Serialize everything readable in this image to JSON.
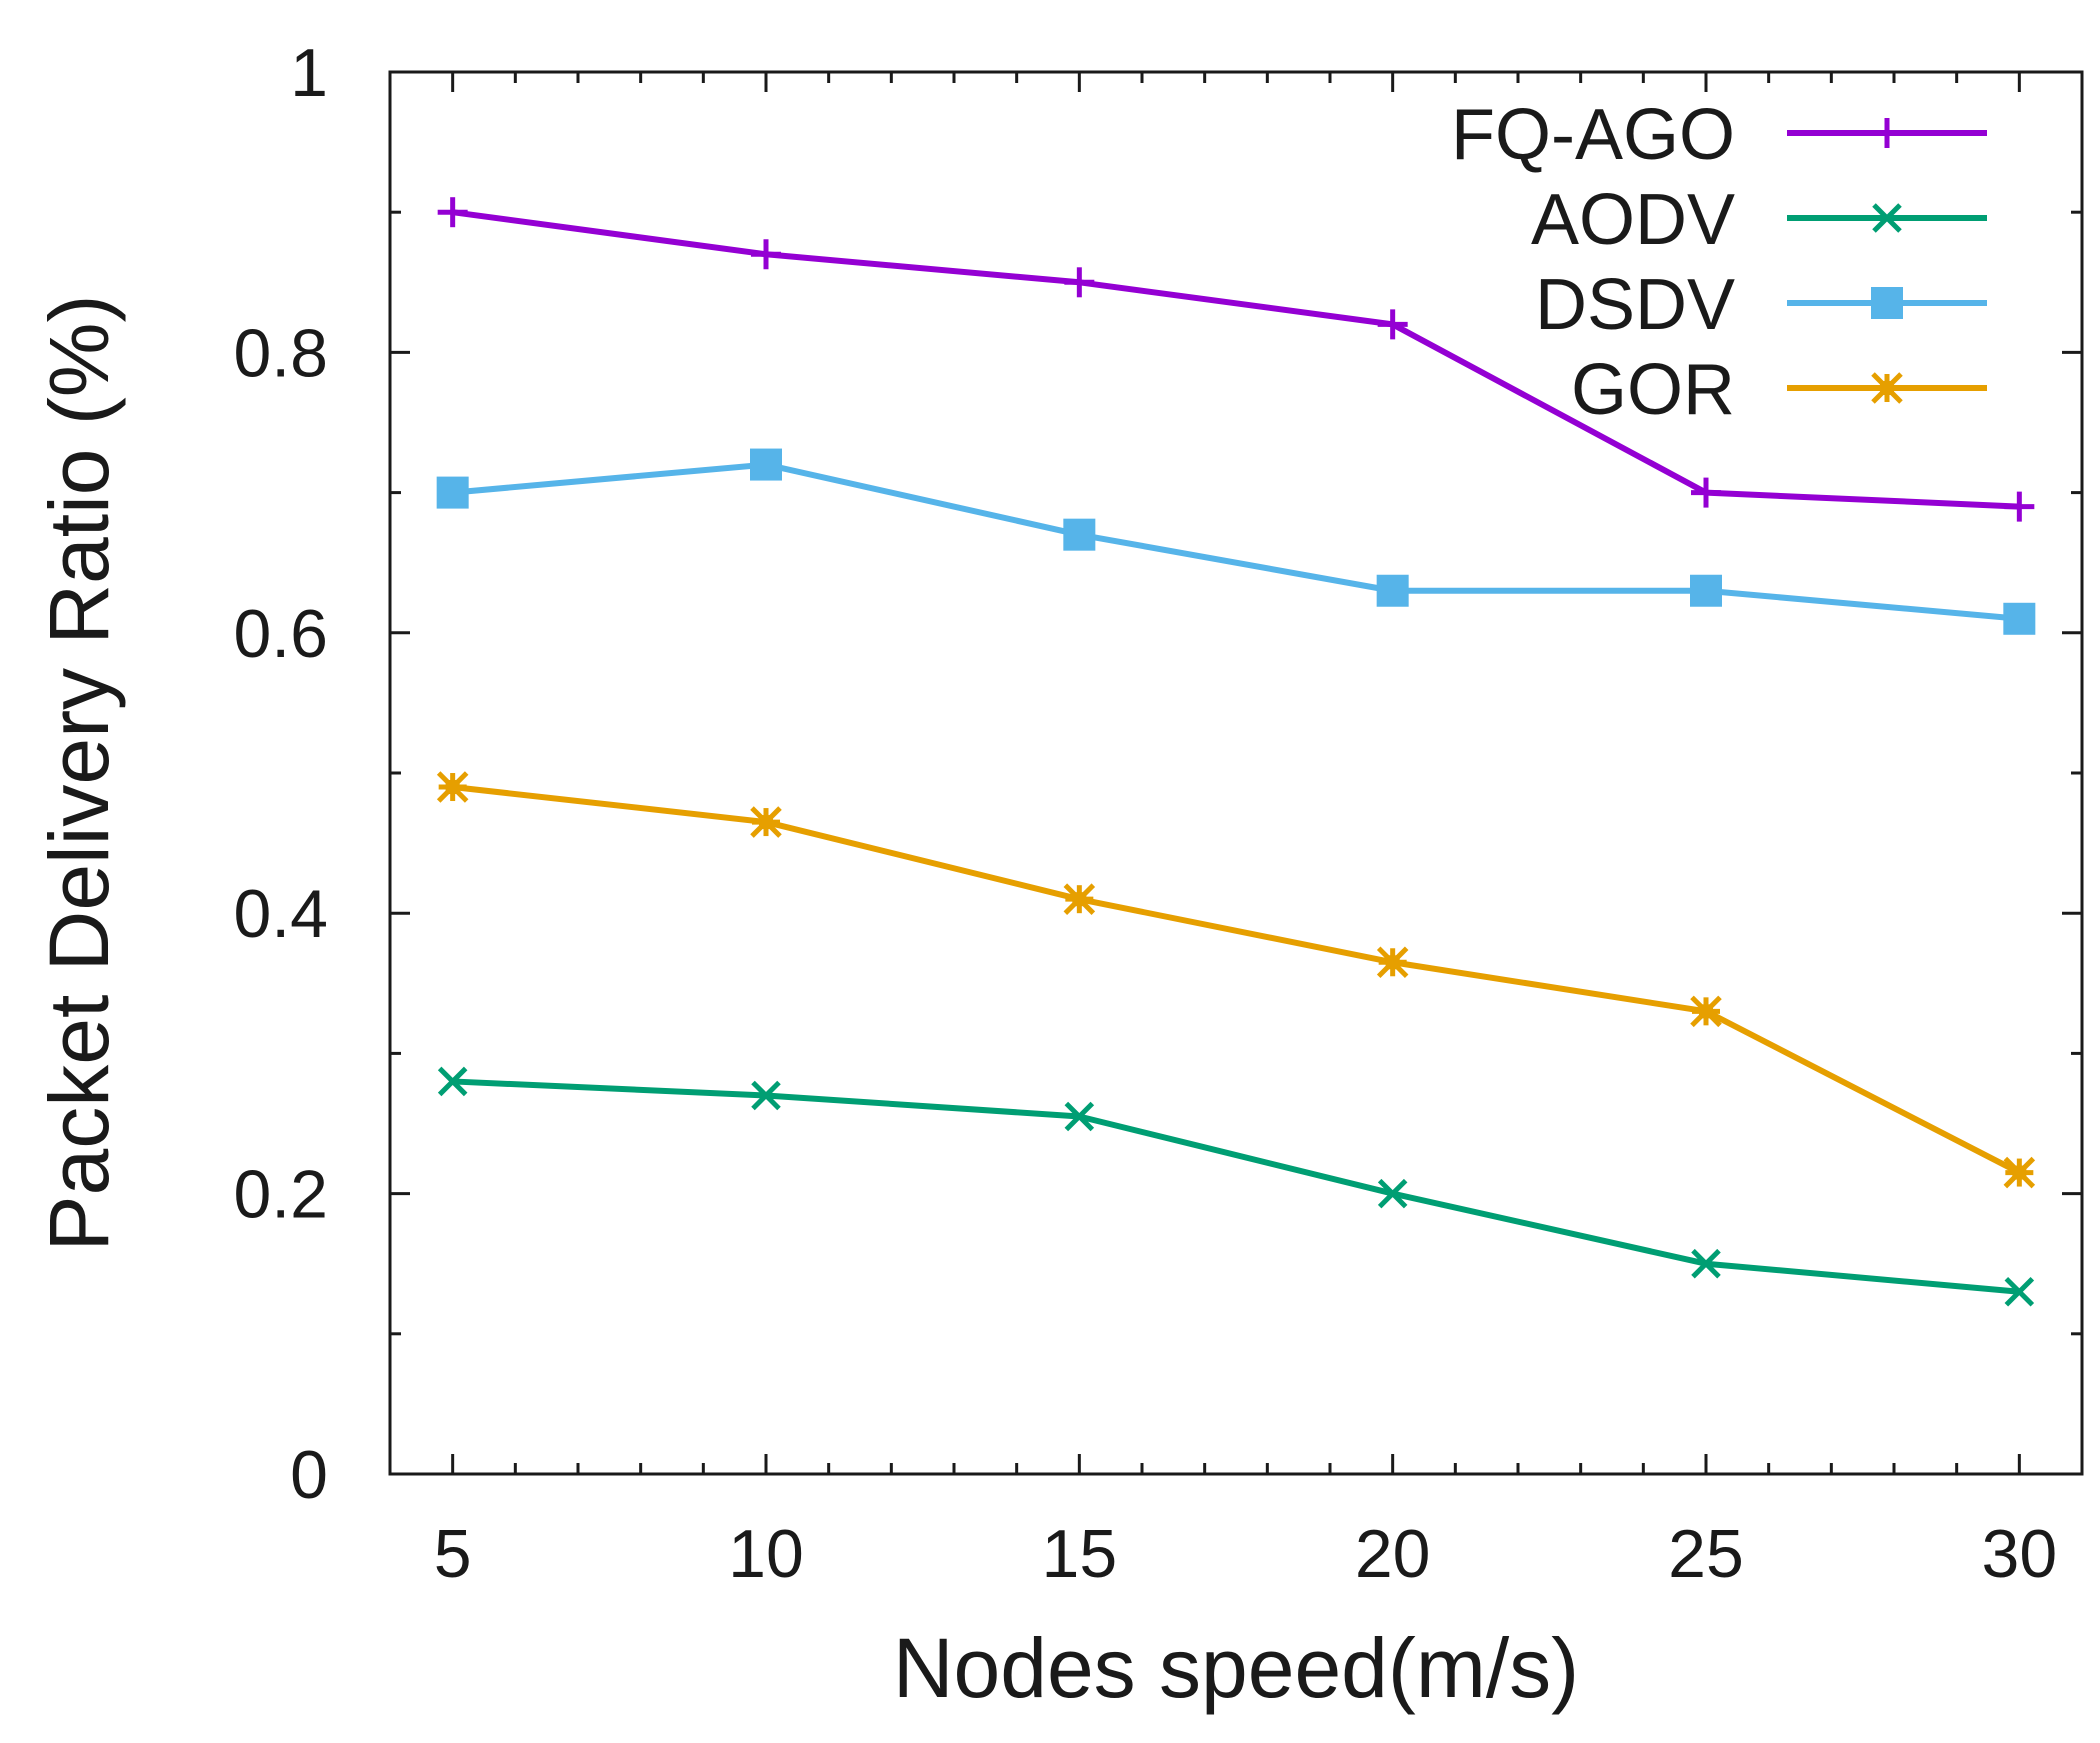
{
  "chart_data": {
    "type": "line",
    "title": "",
    "xlabel": "Nodes speed(m/s)",
    "ylabel": "Packet Delivery Ratio (%)",
    "x": [
      5,
      10,
      15,
      20,
      25,
      30
    ],
    "xlim": [
      4,
      31
    ],
    "ylim": [
      0,
      1
    ],
    "xticks": [
      5,
      10,
      15,
      20,
      25,
      30
    ],
    "yticks": [
      0,
      0.2,
      0.4,
      0.6,
      0.8,
      1
    ],
    "ytick_labels": [
      "0",
      "0.2",
      "0.4",
      "0.6",
      "0.8",
      "1"
    ],
    "legend_position": "top-right",
    "grid": false,
    "series": [
      {
        "name": "FQ-AGO",
        "color": "#9400d3",
        "marker": "plus",
        "values": [
          0.9,
          0.87,
          0.85,
          0.82,
          0.7,
          0.69
        ]
      },
      {
        "name": "AODV",
        "color": "#009e73",
        "marker": "cross",
        "values": [
          0.28,
          0.27,
          0.255,
          0.2,
          0.15,
          0.13
        ]
      },
      {
        "name": "DSDV",
        "color": "#56b4e9",
        "marker": "square",
        "values": [
          0.7,
          0.72,
          0.67,
          0.63,
          0.63,
          0.61
        ]
      },
      {
        "name": "GOR",
        "color": "#e69f00",
        "marker": "star",
        "values": [
          0.49,
          0.465,
          0.41,
          0.365,
          0.33,
          0.215
        ]
      }
    ]
  }
}
